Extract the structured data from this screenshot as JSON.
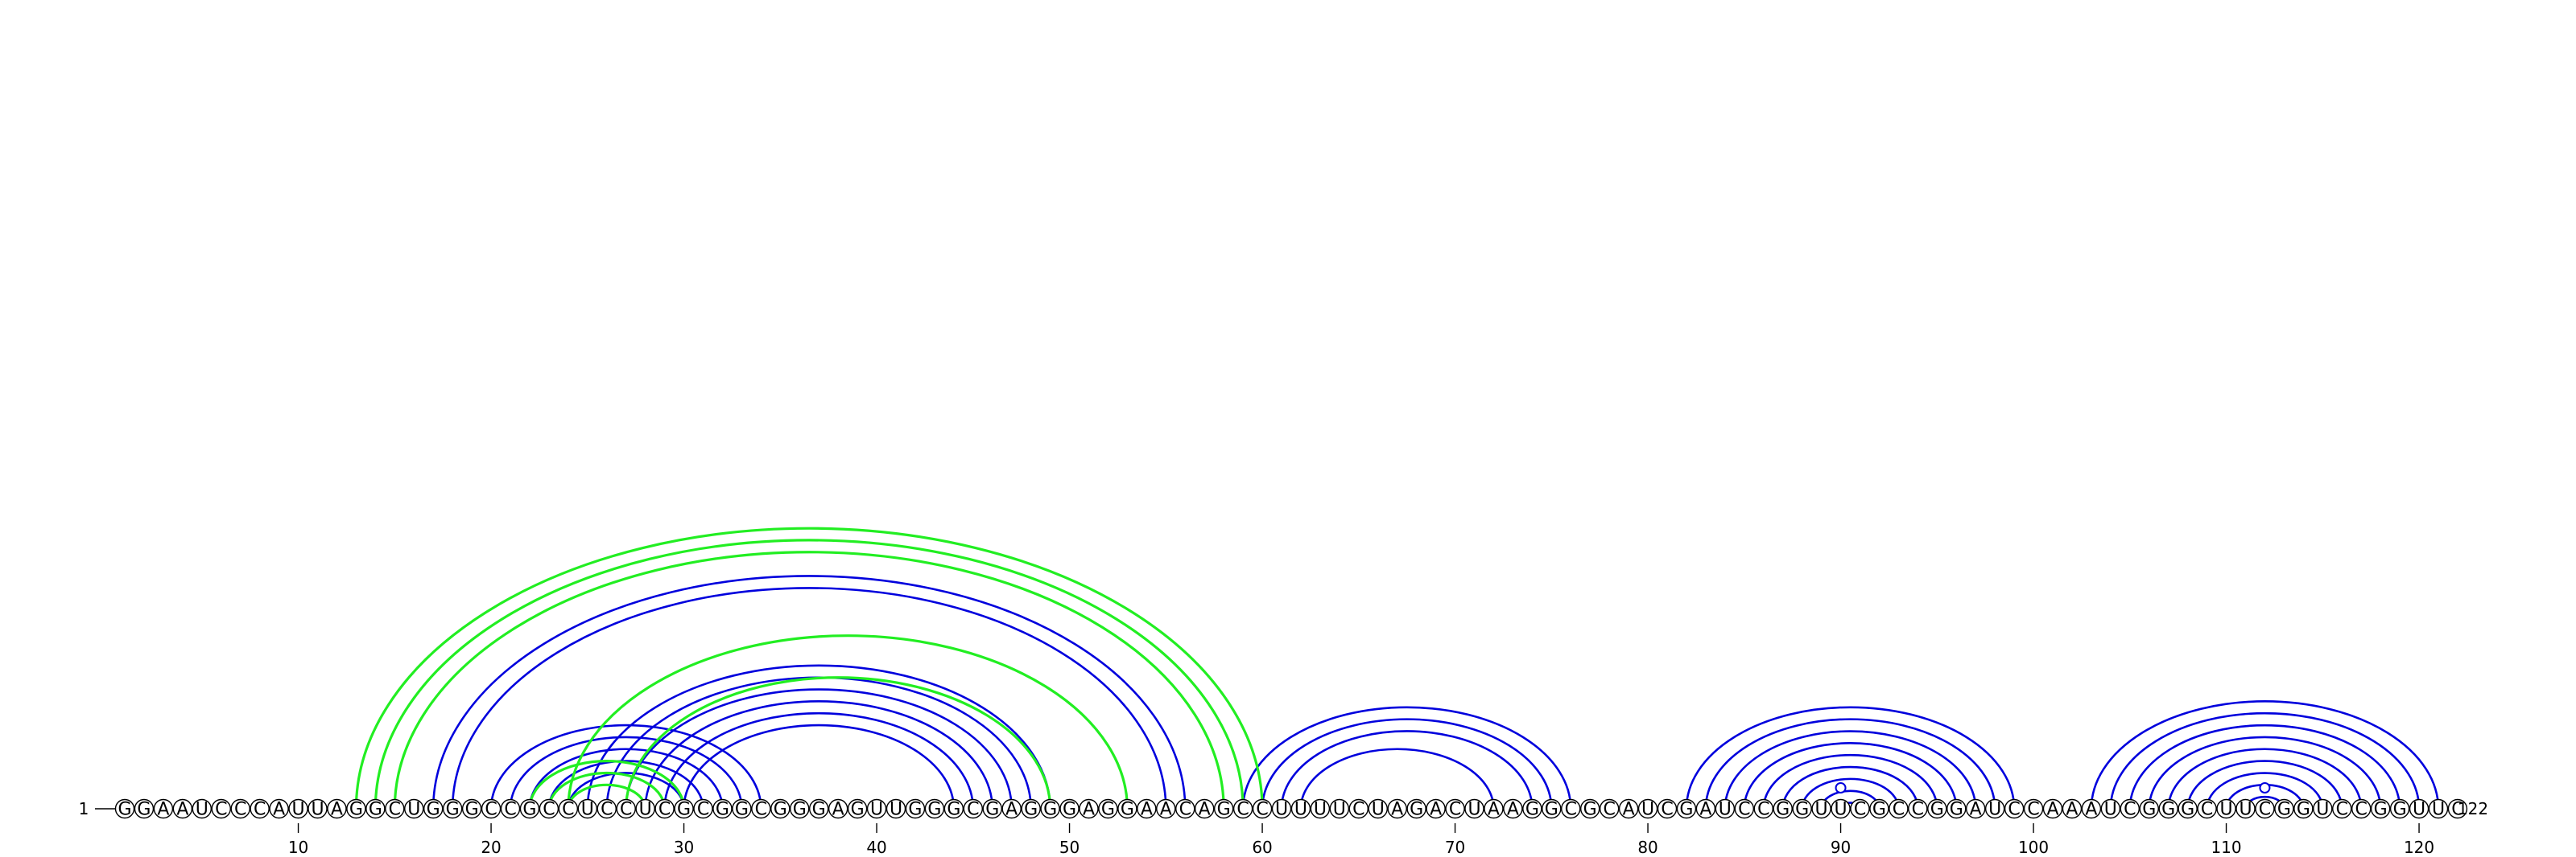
{
  "chart_data": {
    "type": "arc-diagram",
    "sequence": "GGAAUCCCAUUAGGCUGGGCCGCCUCCUCGCGGCGGGAGUUGGGCGAGGGAGGAACAGCCUUUUCUAGACUAAGGCGCAUCGAUCCGGUUCGCCGGAUCCAAAUCGGGCUUCGGUCCGGUUC",
    "length": 122,
    "start_label": "1",
    "end_label": "122",
    "ticks": [
      10,
      20,
      30,
      40,
      50,
      60,
      70,
      80,
      90,
      100,
      110,
      120
    ],
    "colors": {
      "blue": "#0000dd",
      "green": "#22ee22"
    },
    "blue_pairs": [
      [
        17,
        56
      ],
      [
        18,
        55
      ],
      [
        20,
        34
      ],
      [
        21,
        33
      ],
      [
        22,
        32
      ],
      [
        23,
        31
      ],
      [
        24,
        30
      ],
      [
        25,
        49
      ],
      [
        26,
        48
      ],
      [
        27,
        47
      ],
      [
        28,
        46
      ],
      [
        29,
        45
      ],
      [
        30,
        44
      ],
      [
        59,
        76
      ],
      [
        60,
        75
      ],
      [
        61,
        74
      ],
      [
        62,
        72
      ],
      [
        82,
        99
      ],
      [
        83,
        98
      ],
      [
        84,
        97
      ],
      [
        85,
        96
      ],
      [
        86,
        95
      ],
      [
        87,
        94
      ],
      [
        88,
        93
      ],
      [
        89,
        92
      ],
      [
        90,
        91
      ],
      [
        103,
        121
      ],
      [
        104,
        120
      ],
      [
        105,
        119
      ],
      [
        106,
        118
      ],
      [
        107,
        117
      ],
      [
        108,
        116
      ],
      [
        109,
        115
      ],
      [
        110,
        114
      ],
      [
        111,
        113
      ],
      [
        112,
        112
      ]
    ],
    "green_pairs": [
      [
        13,
        60
      ],
      [
        14,
        59
      ],
      [
        15,
        58
      ],
      [
        24,
        53
      ],
      [
        27,
        49
      ],
      [
        22,
        30
      ],
      [
        23,
        29
      ],
      [
        24,
        28
      ]
    ],
    "circle_markers": [
      90,
      112
    ]
  }
}
